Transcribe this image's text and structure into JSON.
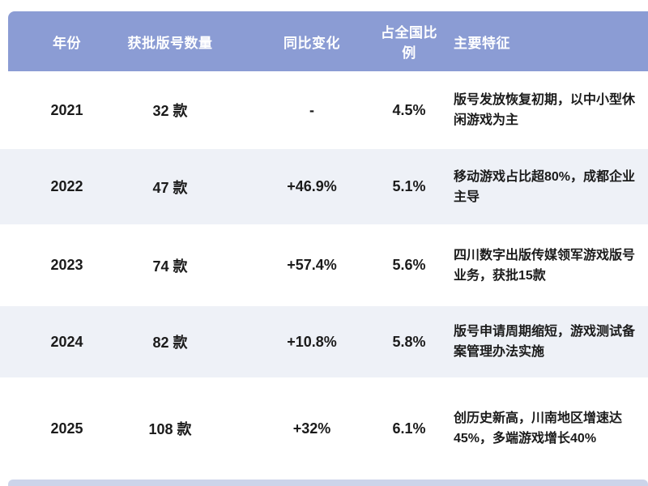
{
  "chart_data": {
    "type": "table",
    "columns": [
      "年份",
      "获批版号数量",
      "同比变化",
      "占全国比例",
      "主要特征"
    ],
    "rows": [
      {
        "year": "2021",
        "count": "32 款",
        "yoy_change": "-",
        "national_share": "4.5%",
        "feature": "版号发放恢复初期，以中小型休闲游戏为主"
      },
      {
        "year": "2022",
        "count": "47 款",
        "yoy_change": "+46.9%",
        "national_share": "5.1%",
        "feature": "移动游戏占比超80%，成都企业主导"
      },
      {
        "year": "2023",
        "count": "74 款",
        "yoy_change": "+57.4%",
        "national_share": "5.6%",
        "feature": "四川数字出版传媒领军游戏版号业务，获批15款"
      },
      {
        "year": "2024",
        "count": "82 款",
        "yoy_change": "+10.8%",
        "national_share": "5.8%",
        "feature": "版号申请周期缩短，游戏测试备案管理办法实施"
      },
      {
        "year": "2025",
        "count": "108 款",
        "yoy_change": "+32%",
        "national_share": "6.1%",
        "feature": "创历史新高，川南地区增速达45%，多端游戏增长40%"
      }
    ],
    "layout": {
      "header_position": "top",
      "alternating_rows": true,
      "grid": "off"
    },
    "colors": {
      "header_bg": "#8b9cd4",
      "header_text": "#ffffff",
      "row_bg": "#ffffff",
      "alt_row_bg": "#eef1f7",
      "body_text": "#1b1b1b",
      "bottom_strip": "#ccd4ea"
    }
  }
}
